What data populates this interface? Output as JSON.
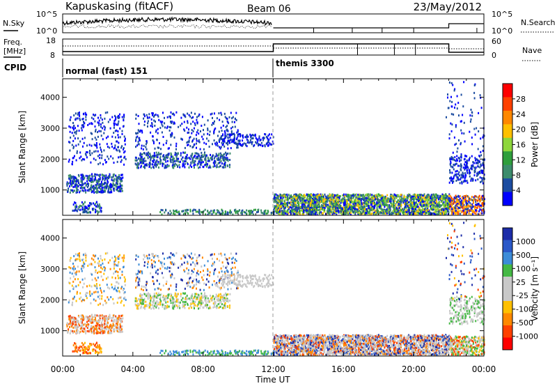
{
  "header": {
    "station": "Kapuskasing (fitACF)",
    "beam": "Beam 06",
    "date": "23/May/2012"
  },
  "noise_panel": {
    "left_label": "N.Sky",
    "left_ticks": [
      "10^5",
      "10^0"
    ],
    "right_label": "N.Search",
    "right_ticks": [
      "10^5",
      "10^0"
    ]
  },
  "freq_panel": {
    "left_label_1": "Freq.",
    "left_label_2": "[MHz]",
    "left_ticks": [
      "18",
      "8"
    ],
    "right_label": "Nave",
    "right_ticks": [
      "60",
      "0"
    ]
  },
  "cpid": {
    "label": "CPID",
    "segments": [
      {
        "name": "normal (fast) 151",
        "start_hour": 0
      },
      {
        "name": "themis 3300",
        "start_hour": 12
      }
    ]
  },
  "chart_data": [
    {
      "type": "heatmap",
      "name": "power",
      "ylabel": "Slant Range [km]",
      "yticks": [
        1000,
        2000,
        3000,
        4000
      ],
      "ylim": [
        180,
        4600
      ],
      "xlim_hours": [
        0,
        24
      ],
      "xticks": [
        "00:00",
        "04:00",
        "08:00",
        "12:00",
        "16:00",
        "20:00",
        "00:00"
      ],
      "colorbar": {
        "label": "Power [dB]",
        "ticks": [
          "28",
          "24",
          "20",
          "16",
          "12",
          "8",
          "4"
        ],
        "colors": [
          "#ff0000",
          "#ff4000",
          "#ff8800",
          "#ffc000",
          "#8ed63c",
          "#2e9e3c",
          "#3c8c6c",
          "#1c4ca0",
          "#0000ff"
        ]
      }
    },
    {
      "type": "heatmap",
      "name": "velocity",
      "ylabel": "Slant Range [km]",
      "yticks": [
        1000,
        2000,
        3000,
        4000
      ],
      "ylim": [
        180,
        4600
      ],
      "xlim_hours": [
        0,
        24
      ],
      "xticks": [
        "00:00",
        "04:00",
        "08:00",
        "12:00",
        "16:00",
        "20:00",
        "00:00"
      ],
      "xlabel": "Time UT",
      "colorbar": {
        "label": "Velocity [m s⁻¹]",
        "ticks": [
          "1000",
          "500",
          "100",
          "25",
          "-25",
          "-100",
          "-500",
          "-1000"
        ],
        "colors": [
          "#1c2ca8",
          "#2a58c8",
          "#3c8cd8",
          "#44b844",
          "#c8c8c8",
          "#c8c8c8",
          "#ffc000",
          "#ff8800",
          "#ff4000",
          "#ff0000"
        ]
      }
    }
  ]
}
